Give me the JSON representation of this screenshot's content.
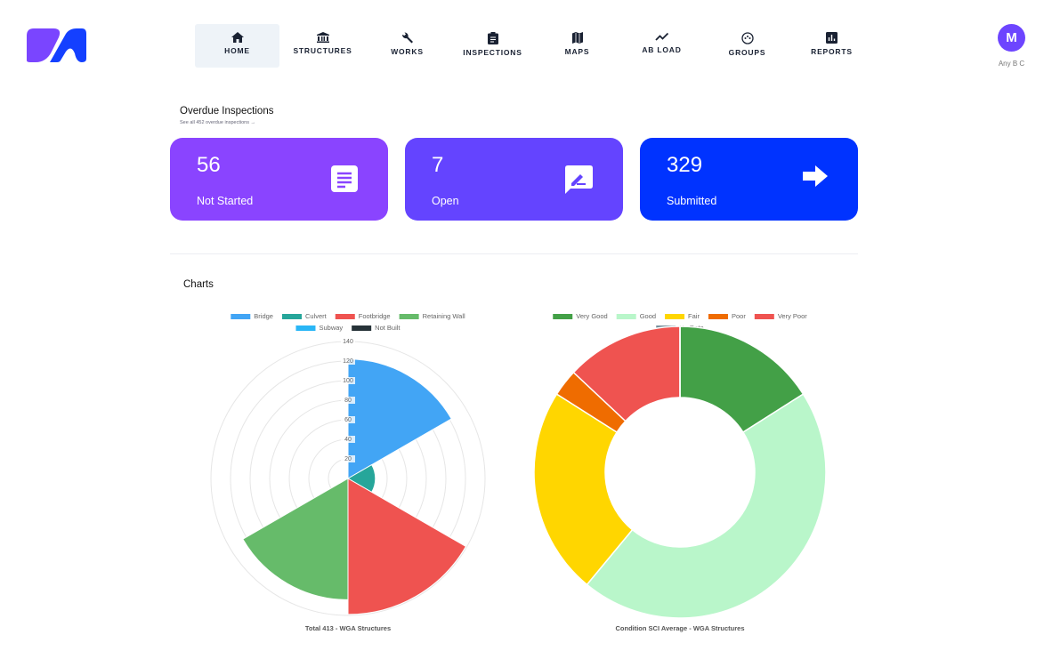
{
  "nav": {
    "items": [
      "HOME",
      "STRUCTURES",
      "WORKS",
      "INSPECTIONS",
      "MAPS",
      "AB LOAD",
      "GROUPS",
      "REPORTS"
    ]
  },
  "user": {
    "initial": "M",
    "name": "Any B C"
  },
  "overdue": {
    "title": "Overdue Inspections",
    "link": "See all 452 overdue inspections",
    "cards": [
      {
        "value": 56,
        "label": "Not Started",
        "color": "#8a44ff"
      },
      {
        "value": 7,
        "label": "Open",
        "color": "#6444ff"
      },
      {
        "value": 329,
        "label": "Submitted",
        "color": "#0033ff"
      }
    ]
  },
  "charts_title": "Charts",
  "chart_data": [
    {
      "type": "polar",
      "title": "Total 413 - WGA Structures",
      "categories": [
        "Bridge",
        "Culvert",
        "Footbridge",
        "Retaining Wall",
        "Subway",
        "Not Built"
      ],
      "values": [
        122,
        28,
        139,
        124,
        0,
        0
      ],
      "colors": [
        "#42a5f5",
        "#26a69a",
        "#ef5350",
        "#66bb6a",
        "#29b6f6",
        "#263238"
      ],
      "rlim": [
        0,
        140
      ],
      "rticks": [
        20,
        40,
        60,
        80,
        100,
        120,
        140
      ]
    },
    {
      "type": "doughnut",
      "title": "Condition SCI Average - WGA Structures",
      "categories": [
        "Very Good",
        "Good",
        "Fair",
        "Poor",
        "Very Poor",
        "No Data"
      ],
      "values": [
        16,
        45,
        23,
        3,
        13,
        0
      ],
      "colors": [
        "#43a047",
        "#b9f6ca",
        "#ffd600",
        "#ef6c00",
        "#ef5350",
        "#78909c"
      ]
    }
  ]
}
